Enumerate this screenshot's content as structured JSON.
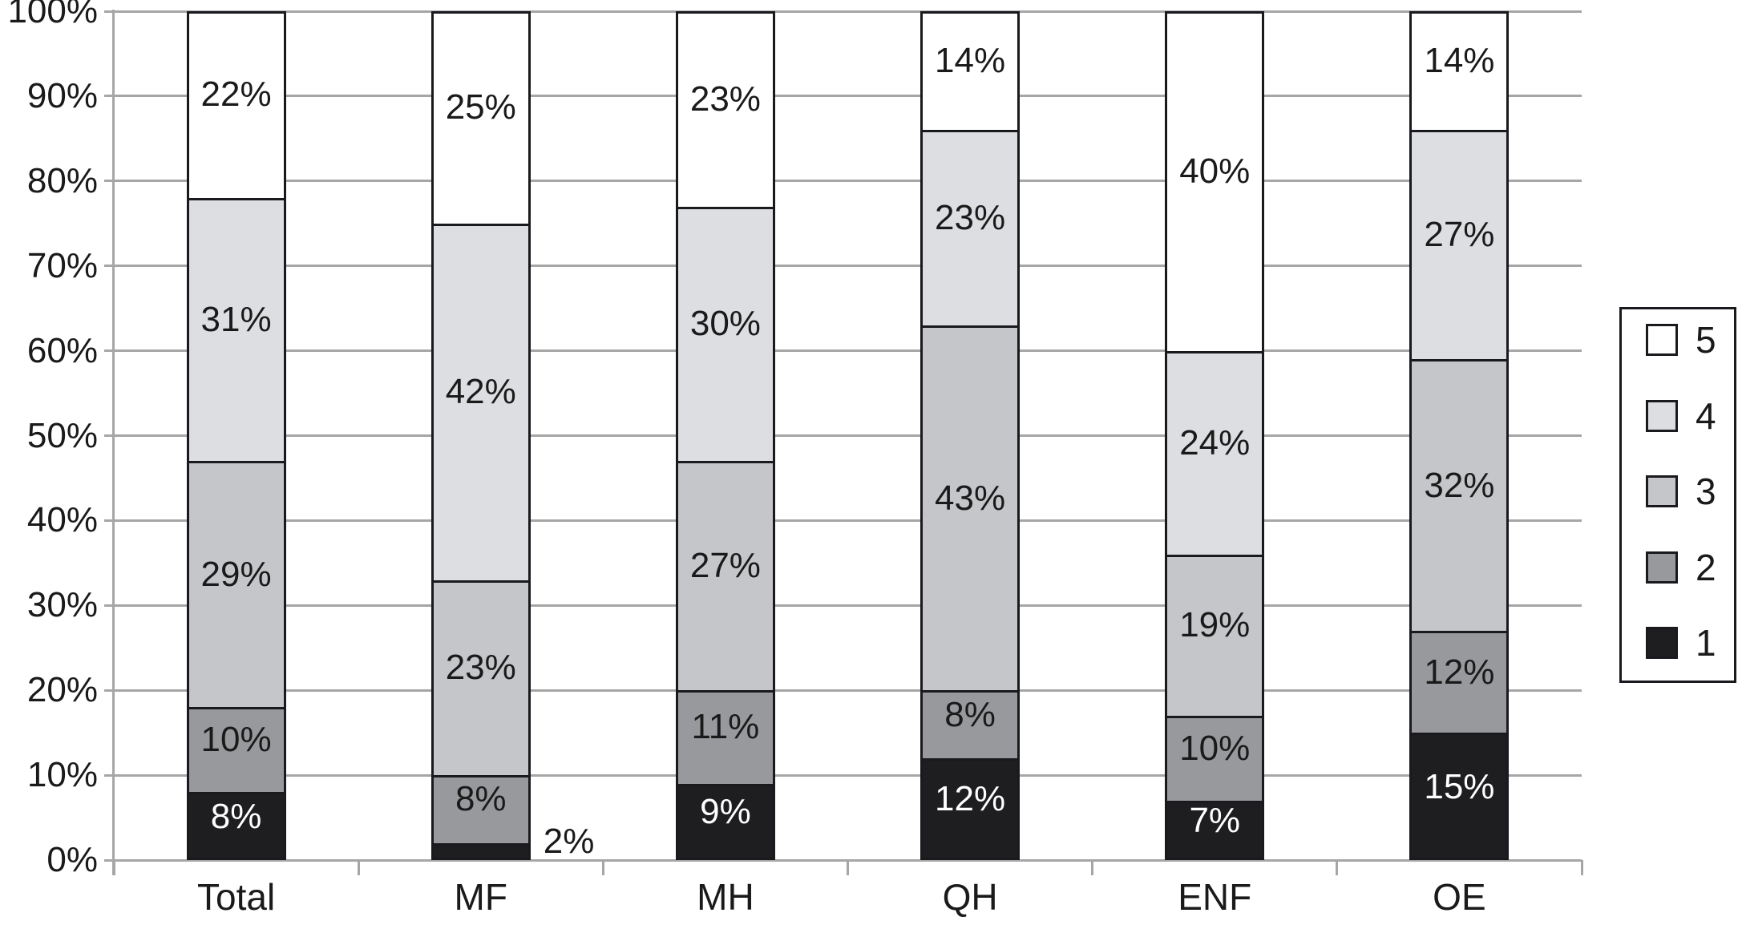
{
  "chart_data": {
    "type": "bar",
    "stacked": true,
    "percent_stacked": true,
    "unit": "%",
    "title": "",
    "xlabel": "",
    "ylabel": "",
    "categories": [
      "Total",
      "MF",
      "MH",
      "QH",
      "ENF",
      "OE"
    ],
    "series": [
      {
        "name": "1",
        "color": "#1e1e21",
        "label_color": "#ffffff",
        "values": [
          8,
          2,
          9,
          12,
          7,
          15
        ]
      },
      {
        "name": "2",
        "color": "#98999d",
        "label_color": "#1a1a1a",
        "values": [
          10,
          8,
          11,
          8,
          10,
          12
        ]
      },
      {
        "name": "3",
        "color": "#c5c6c9",
        "label_color": "#1a1a1a",
        "values": [
          29,
          23,
          27,
          43,
          19,
          32
        ]
      },
      {
        "name": "4",
        "color": "#dddee1",
        "label_color": "#1a1a1a",
        "values": [
          31,
          42,
          30,
          23,
          24,
          27
        ]
      },
      {
        "name": "5",
        "color": "#ffffff",
        "label_color": "#1a1a1a",
        "values": [
          22,
          25,
          23,
          14,
          40,
          14
        ]
      }
    ],
    "y_axis": {
      "min": 0,
      "max": 100,
      "tick_step": 10,
      "ticks": [
        "0%",
        "10%",
        "20%",
        "30%",
        "40%",
        "50%",
        "60%",
        "70%",
        "80%",
        "90%",
        "100%"
      ],
      "grid": true
    },
    "legend": {
      "position": "right",
      "entries_top_to_bottom": [
        "5",
        "4",
        "3",
        "2",
        "1"
      ]
    },
    "data_labels": "every segment labeled with its percent value",
    "label_overrides": [
      {
        "category": "MF",
        "series": "1",
        "position": "outside-right"
      }
    ],
    "colors": {
      "grid": "#a6a6a6",
      "bar_border": "#1a1a1e",
      "text": "#1a1a1a",
      "background": "#ffffff"
    }
  }
}
